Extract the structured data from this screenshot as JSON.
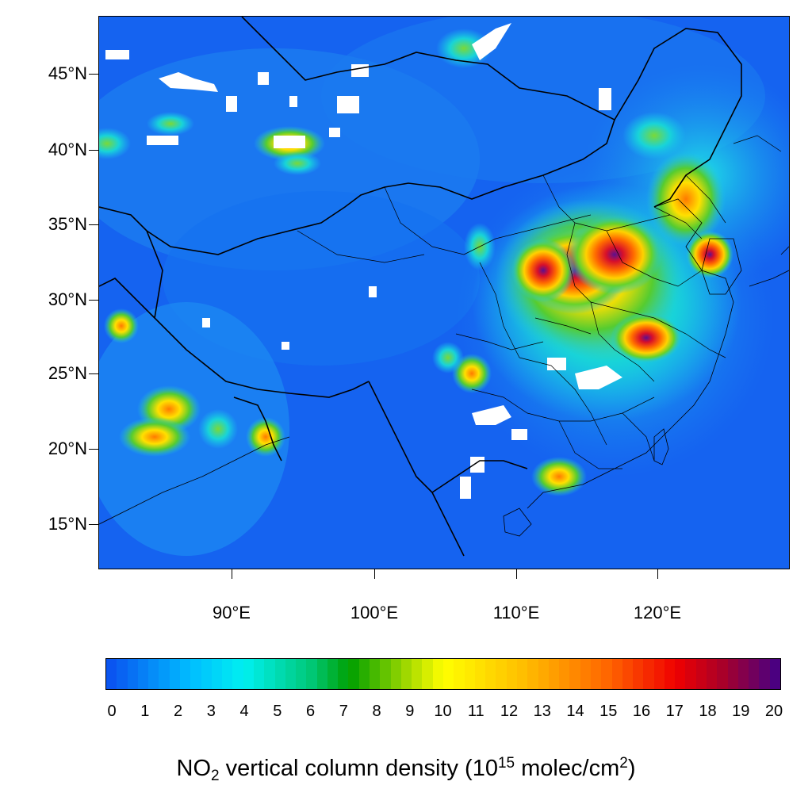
{
  "map": {
    "lat_labels": [
      "45°N",
      "40°N",
      "35°N",
      "30°N",
      "25°N",
      "20°N",
      "15°N"
    ],
    "lon_labels": [
      "90°E",
      "100°E",
      "110°E",
      "120°E"
    ],
    "colors": {
      "ocean_background": "#1a5cf2",
      "low": "#0a55f0",
      "mid": "#00d6ff",
      "high": "#ff2200",
      "max": "#4b0080",
      "missing": "#ffffff"
    }
  },
  "colorbar": {
    "tick_labels": [
      "0",
      "1",
      "2",
      "3",
      "4",
      "5",
      "6",
      "7",
      "8",
      "9",
      "10",
      "11",
      "12",
      "13",
      "14",
      "15",
      "16",
      "17",
      "18",
      "19",
      "20"
    ],
    "range": [
      0,
      20
    ],
    "title_parts": {
      "pre": "NO",
      "sub": "2",
      "mid": " vertical column density (10",
      "sup1": "15",
      "mid2": " molec/cm",
      "sup2": "2",
      "post": ")"
    }
  }
}
